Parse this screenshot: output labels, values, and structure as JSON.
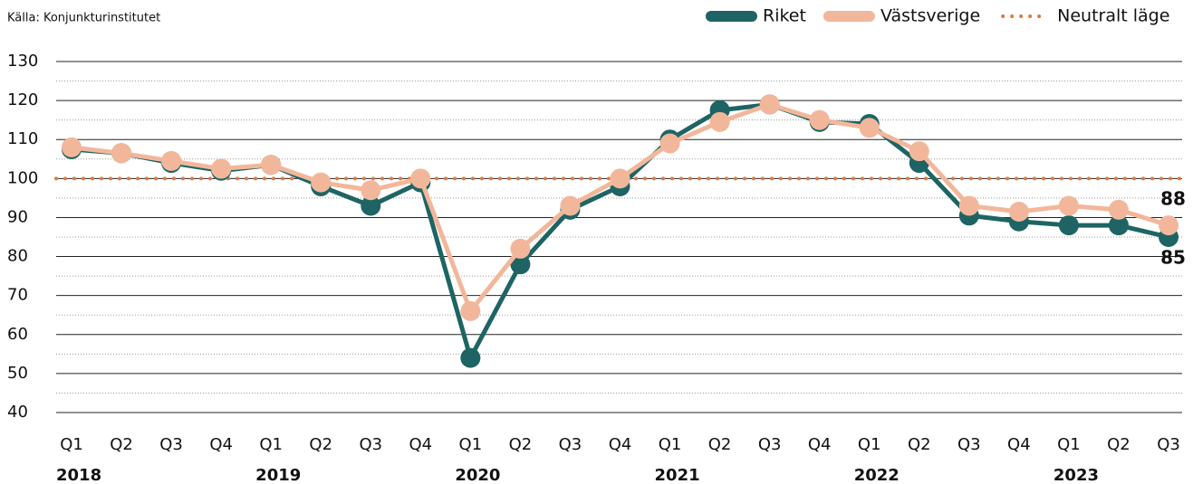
{
  "chart_data": {
    "type": "line",
    "source": "Källa: Konjunkturinstitutet",
    "categories": [
      "Q1",
      "Q2",
      "Q3",
      "Q4",
      "Q1",
      "Q2",
      "Q3",
      "Q4",
      "Q1",
      "Q2",
      "Q3",
      "Q4",
      "Q1",
      "Q2",
      "Q3",
      "Q4",
      "Q1",
      "Q2",
      "Q3",
      "Q4",
      "Q1",
      "Q2",
      "Q3"
    ],
    "year_labels": [
      "2018",
      null,
      null,
      null,
      "2019",
      null,
      null,
      null,
      "2020",
      null,
      null,
      null,
      "2021",
      null,
      null,
      null,
      "2022",
      null,
      null,
      null,
      "2023",
      null,
      null
    ],
    "series": [
      {
        "name": "Riket",
        "color": "#1e6464",
        "values": [
          107.5,
          106.5,
          104,
          102,
          103.5,
          98,
          93,
          99,
          54,
          78,
          92,
          98,
          110,
          117.5,
          119,
          114.5,
          114,
          104,
          90.5,
          89,
          88,
          88,
          85
        ]
      },
      {
        "name": "Västsverige",
        "color": "#f2b79a",
        "values": [
          108,
          106.5,
          104.5,
          102.5,
          103.5,
          99,
          97,
          100,
          66,
          82,
          93,
          100,
          109,
          114.5,
          119,
          115,
          113,
          107,
          93,
          91.5,
          93,
          92,
          88
        ]
      }
    ],
    "neutral": {
      "name": "Neutralt läge",
      "value": 100,
      "color": "#e0783c"
    },
    "ylim": [
      40,
      130
    ],
    "yticks": [
      40,
      50,
      60,
      70,
      80,
      90,
      100,
      110,
      120,
      130
    ],
    "minor_yticks": [
      45,
      55,
      65,
      75,
      85,
      95,
      105,
      115,
      125
    ],
    "grid": true
  }
}
